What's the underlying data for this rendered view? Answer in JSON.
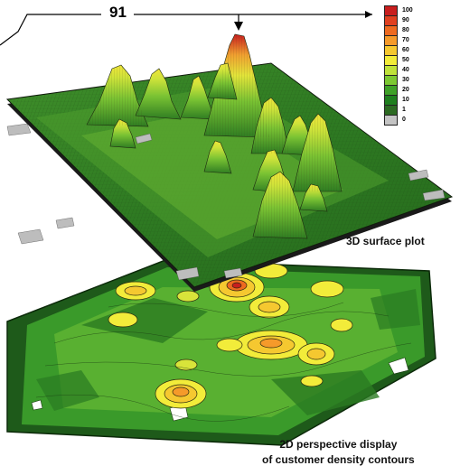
{
  "callout": {
    "value": "91"
  },
  "captions": {
    "surface": "3D surface plot",
    "contour_line1": "2D perspective display",
    "contour_line2": "of customer density contours"
  },
  "legend": {
    "labels": [
      "100",
      "90",
      "80",
      "70",
      "60",
      "50",
      "40",
      "30",
      "20",
      "10",
      "1",
      "0"
    ],
    "colors": [
      "#c81e1e",
      "#e04020",
      "#ee6a20",
      "#f59a2a",
      "#f5c830",
      "#f2ec3a",
      "#bfe23a",
      "#7cc832",
      "#3fa128",
      "#1f7f1e",
      "#2c6a22",
      "#c4c4c4"
    ]
  },
  "palette": {
    "terrain_dark": "#2c6a22",
    "terrain_mid": "#3fa128",
    "terrain_light": "#7cc832",
    "peak_yellow": "#f2ec3a",
    "peak_orange": "#ee6a20",
    "peak_red": "#c81e1e",
    "no_data": "#c4c4c4"
  }
}
